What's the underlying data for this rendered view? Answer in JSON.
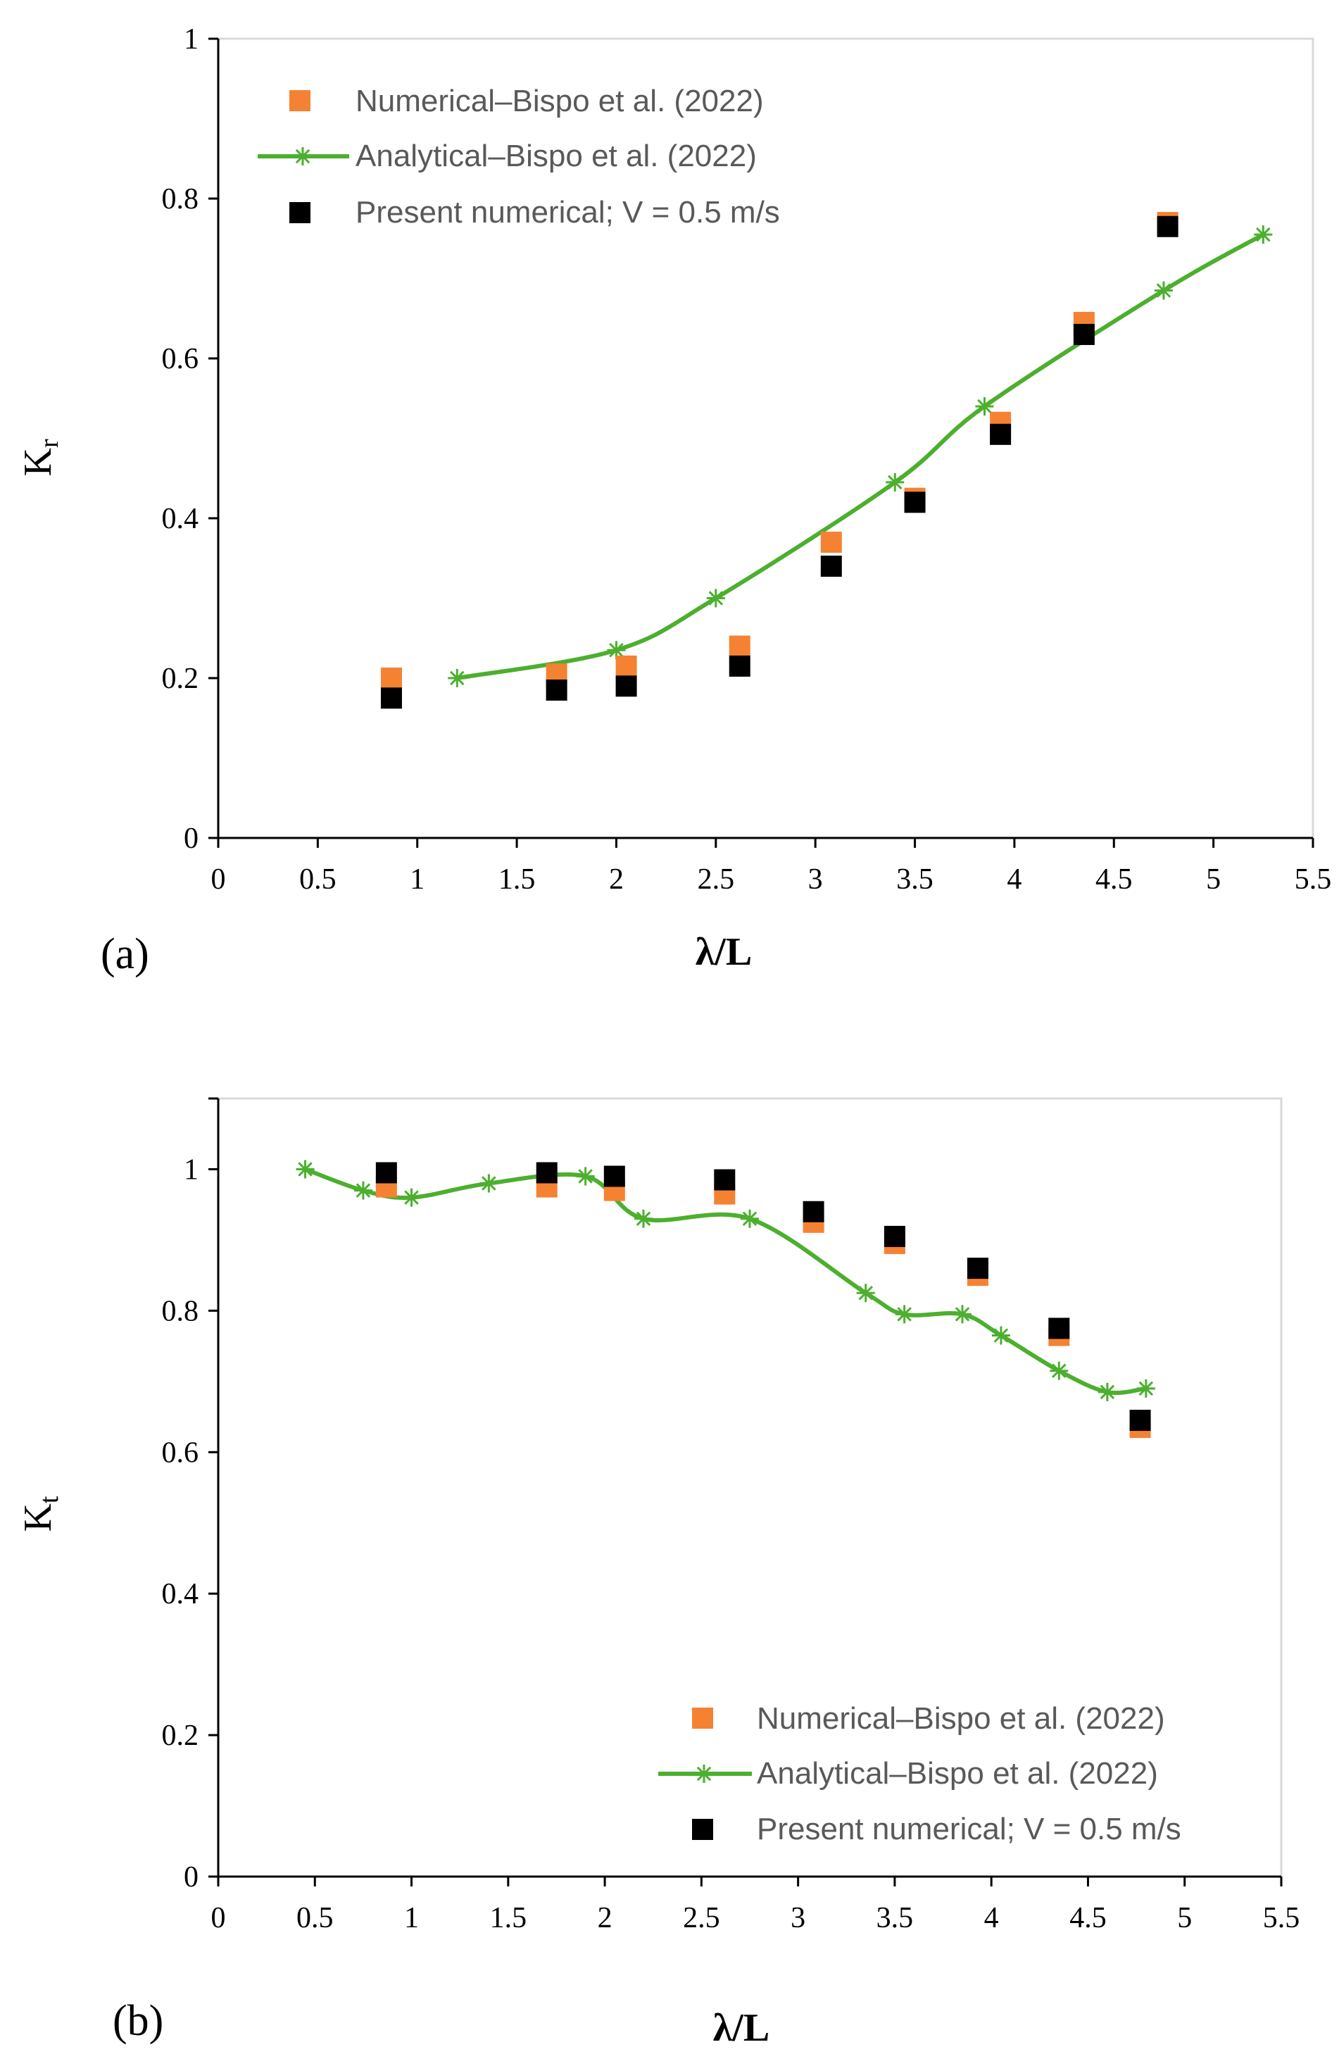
{
  "colors": {
    "numerical": "#f58233",
    "analytical": "#4caf2e",
    "present": "#000000",
    "legend_text": "#595959"
  },
  "legend": {
    "numerical": "Numerical–Bispo et al. (2022)",
    "analytical": "Analytical–Bispo et al. (2022)",
    "present": "Present numerical; V = 0.5 m/s"
  },
  "chart_data": [
    {
      "id": "a",
      "type": "scatter",
      "panel_label": "(a)",
      "xlabel": "λ/L",
      "ylabel": "Kr",
      "ylabel_main": "K",
      "ylabel_sub": "r",
      "xlim": [
        0,
        5.5
      ],
      "ylim": [
        0,
        1
      ],
      "x_ticks": [
        "0",
        "0.5",
        "1",
        "1.5",
        "2",
        "2.5",
        "3",
        "3.5",
        "4",
        "4.5",
        "5",
        "5.5"
      ],
      "y_ticks": [
        "0",
        "0.2",
        "0.4",
        "0.6",
        "0.8",
        "1"
      ],
      "legend_position": "top-left",
      "series": [
        {
          "name": "Numerical–Bispo et al. (2022)",
          "kind": "square",
          "x": [
            0.87,
            1.7,
            2.05,
            2.62,
            3.08,
            3.5,
            3.93,
            4.35,
            4.77
          ],
          "y": [
            0.2,
            0.205,
            0.215,
            0.24,
            0.37,
            0.425,
            0.52,
            0.645,
            0.77
          ]
        },
        {
          "name": "Analytical–Bispo et al. (2022)",
          "kind": "line-star",
          "x": [
            1.2,
            2.0,
            2.5,
            3.4,
            3.85,
            4.75,
            5.25
          ],
          "y": [
            0.2,
            0.235,
            0.3,
            0.445,
            0.54,
            0.685,
            0.755
          ]
        },
        {
          "name": "Present numerical; V = 0.5 m/s",
          "kind": "square",
          "x": [
            0.87,
            1.7,
            2.05,
            2.62,
            3.08,
            3.5,
            3.93,
            4.35,
            4.77
          ],
          "y": [
            0.175,
            0.185,
            0.19,
            0.215,
            0.34,
            0.42,
            0.505,
            0.63,
            0.765
          ]
        }
      ]
    },
    {
      "id": "b",
      "type": "scatter",
      "panel_label": "(b)",
      "xlabel": "λ/L",
      "ylabel": "Kt",
      "ylabel_main": "K",
      "ylabel_sub": "t",
      "xlim": [
        0,
        5.5
      ],
      "ylim": [
        0,
        1.1
      ],
      "x_ticks": [
        "0",
        "0.5",
        "1",
        "1.5",
        "2",
        "2.5",
        "3",
        "3.5",
        "4",
        "4.5",
        "5",
        "5.5"
      ],
      "y_ticks": [
        "0",
        "0.2",
        "0.4",
        "0.6",
        "0.8",
        "1"
      ],
      "y_tick_values": [
        0,
        0.2,
        0.4,
        0.6,
        0.8,
        1.0
      ],
      "legend_position": "bottom-right",
      "series": [
        {
          "name": "Numerical–Bispo et al. (2022)",
          "kind": "square",
          "x": [
            0.87,
            1.7,
            2.05,
            2.62,
            3.08,
            3.5,
            3.93,
            4.35,
            4.77
          ],
          "y": [
            0.975,
            0.975,
            0.97,
            0.965,
            0.925,
            0.895,
            0.85,
            0.765,
            0.635
          ]
        },
        {
          "name": "Analytical–Bispo et al. (2022)",
          "kind": "line-star",
          "x": [
            0.45,
            0.75,
            1.0,
            1.4,
            1.9,
            2.2,
            2.75,
            3.35,
            3.55,
            3.85,
            4.05,
            4.35,
            4.6,
            4.8
          ],
          "y": [
            1.0,
            0.97,
            0.96,
            0.98,
            0.99,
            0.93,
            0.93,
            0.825,
            0.795,
            0.795,
            0.765,
            0.715,
            0.685,
            0.69
          ]
        },
        {
          "name": "Present numerical; V = 0.5 m/s",
          "kind": "square",
          "x": [
            0.87,
            1.7,
            2.05,
            2.62,
            3.08,
            3.5,
            3.93,
            4.35,
            4.77
          ],
          "y": [
            0.995,
            0.995,
            0.99,
            0.985,
            0.94,
            0.905,
            0.86,
            0.775,
            0.645
          ]
        }
      ]
    }
  ]
}
